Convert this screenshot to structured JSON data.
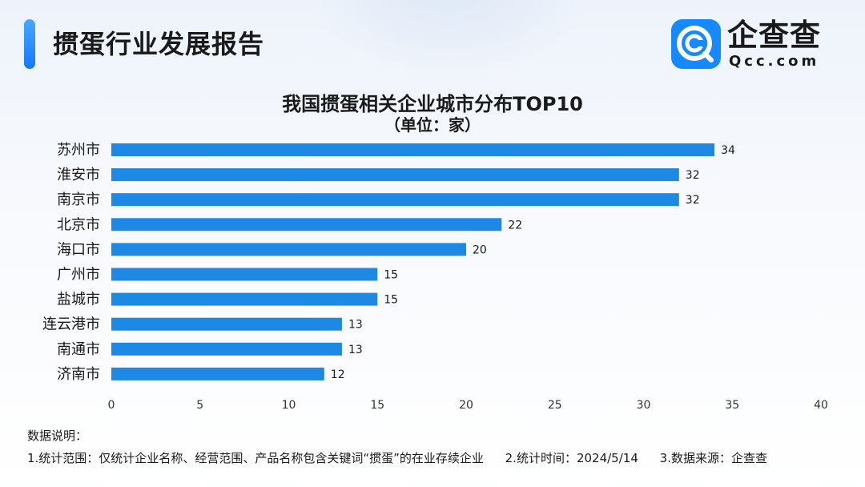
{
  "header": {
    "title": "掼蛋行业发展报告"
  },
  "logo": {
    "name": "企查查",
    "domain": "Qcc.com",
    "brand_color": "#1789ff"
  },
  "chart_data": {
    "type": "bar",
    "orientation": "horizontal",
    "title": "我国掼蛋相关企业城市分布TOP10",
    "subtitle": "（单位：家）",
    "categories": [
      "苏州市",
      "淮安市",
      "南京市",
      "北京市",
      "海口市",
      "广州市",
      "盐城市",
      "连云港市",
      "南通市",
      "济南市"
    ],
    "values": [
      34,
      32,
      32,
      22,
      20,
      15,
      15,
      13,
      13,
      12
    ],
    "xlim": [
      0,
      40
    ],
    "xticks": [
      0,
      5,
      10,
      15,
      20,
      25,
      30,
      35,
      40
    ],
    "bar_color": "#1e88e5",
    "grid": false,
    "data_labels": true
  },
  "notes": {
    "heading": "数据说明：",
    "items": [
      "1.统计范围：仅统计企业名称、经营范围、产品名称包含关键词“掼蛋”的在业存续企业",
      "2.统计时间：2024/5/14",
      "3.数据来源：企查查"
    ]
  }
}
